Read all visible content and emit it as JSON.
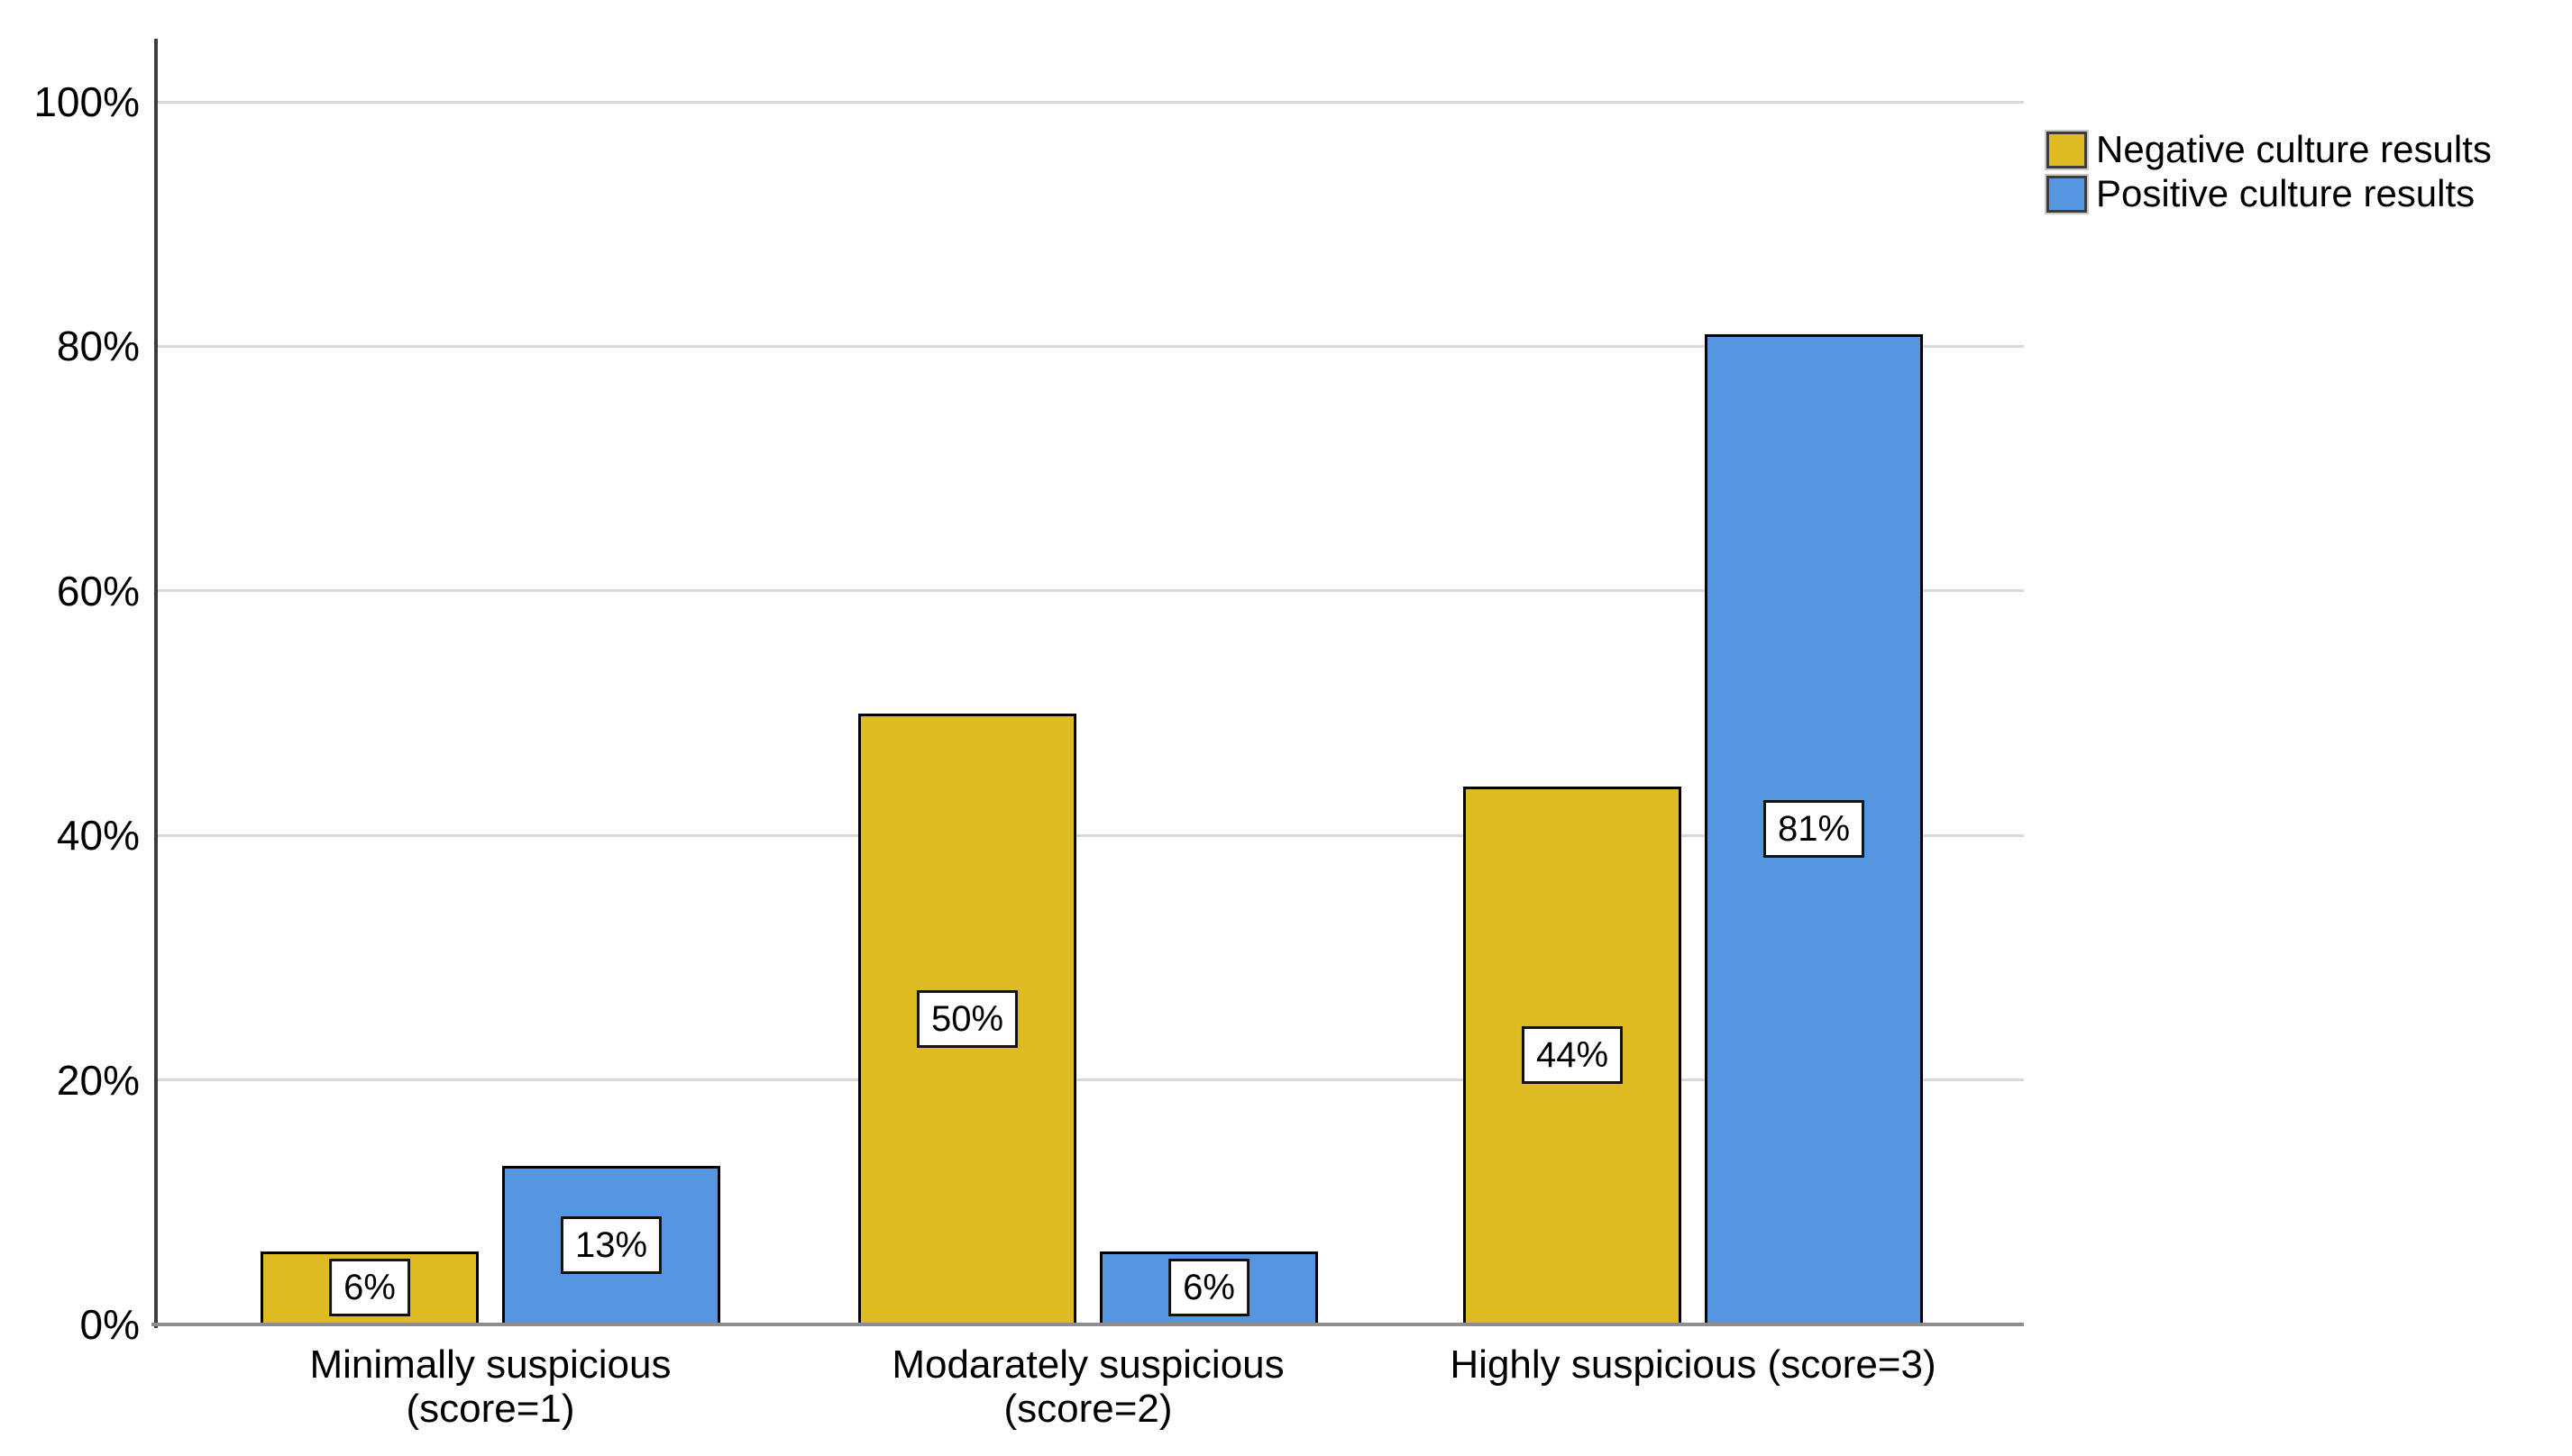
{
  "chart_data": {
    "type": "bar",
    "title": "",
    "categories": [
      "Minimally suspicious\n(score=1)",
      "Modarately suspicious\n(score=2)",
      "Highly suspicious (score=3)"
    ],
    "series": [
      {
        "name": "Negative culture results",
        "color": "#dfbb23",
        "values": [
          6,
          50,
          44
        ],
        "labels": [
          "6%",
          "50%",
          "44%"
        ]
      },
      {
        "name": "Positive culture results",
        "color": "#5696e0",
        "values": [
          13,
          6,
          81
        ],
        "labels": [
          "13%",
          "6%",
          "81%"
        ]
      }
    ],
    "y_axis": {
      "ticks": [
        "0%",
        "20%",
        "40%",
        "60%",
        "80%",
        "100%"
      ],
      "tick_values": [
        0,
        20,
        40,
        60,
        80,
        100
      ],
      "min": 0,
      "max": 100,
      "grid": true
    },
    "xlabel": "",
    "ylabel": "",
    "legend_position": "top-right",
    "value_labels_in_boxes": true,
    "colors": {
      "background": "#ffffff",
      "gridline": "#d9d9d9",
      "y_axis_line": "#3d3d3d",
      "x_baseline": "#8e8e8e",
      "bar_border": "#000000",
      "label_box_bg": "#ffffff",
      "label_box_border": "#111111",
      "text": "#000000"
    }
  }
}
